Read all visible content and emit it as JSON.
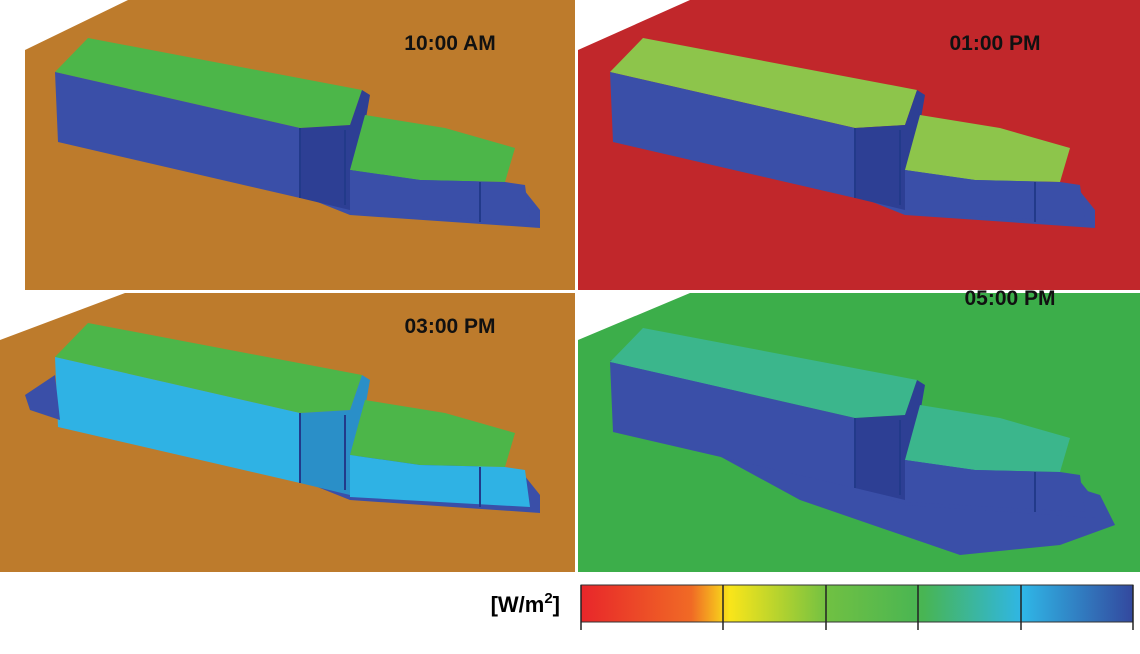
{
  "panels": [
    {
      "label": "10:00 AM"
    },
    {
      "label": "01:00 PM"
    },
    {
      "label": "03:00 PM"
    },
    {
      "label": "05:00 PM"
    }
  ],
  "colorbar": {
    "unit_open": "[W/m",
    "unit_exponent": "2",
    "unit_close": "]"
  }
}
